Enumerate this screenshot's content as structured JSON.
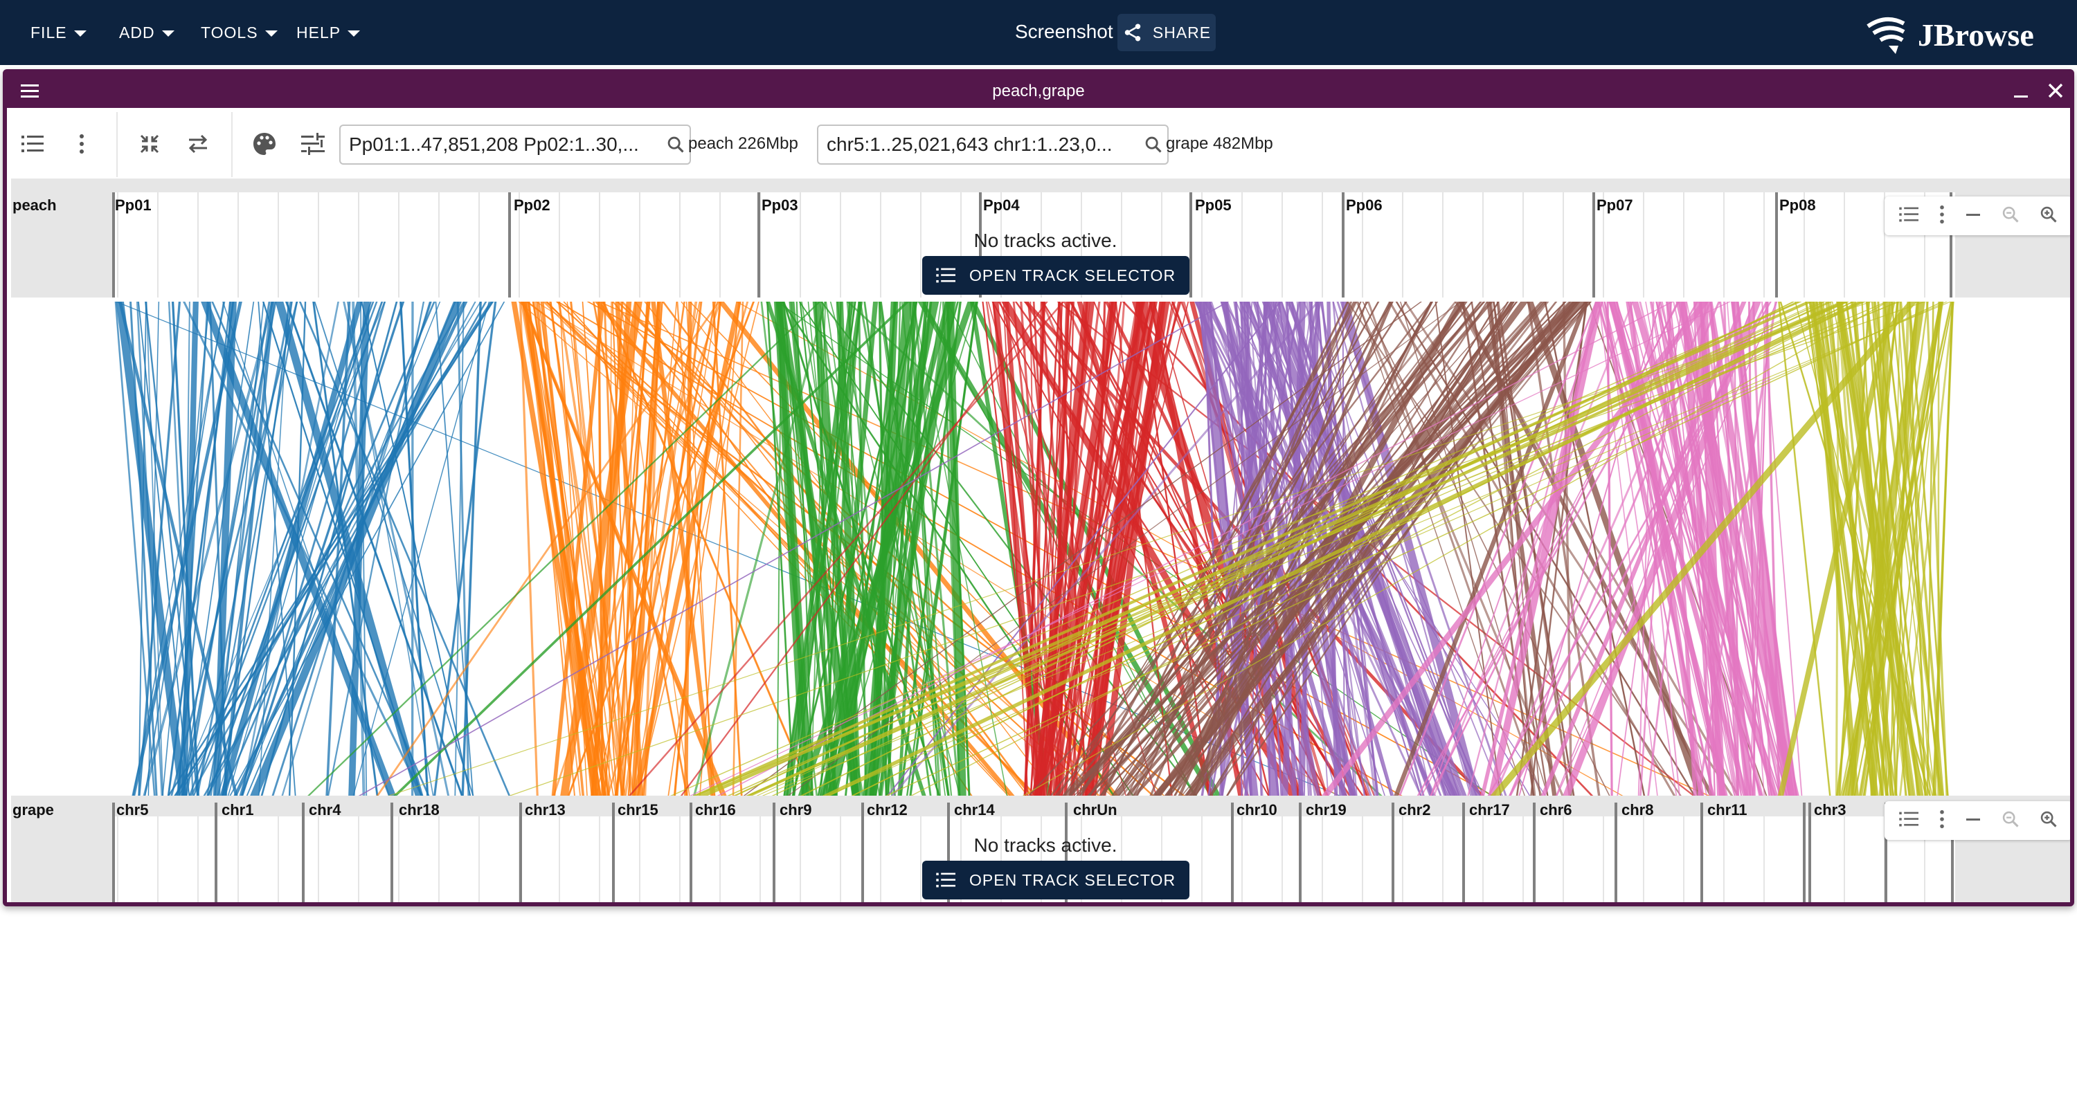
{
  "appbar": {
    "menus": [
      "FILE",
      "ADD",
      "TOOLS",
      "HELP"
    ],
    "session_name": "Screenshot",
    "share_label": "SHARE",
    "logo_text": "JBrowse"
  },
  "view": {
    "title": "peach,grape",
    "top": {
      "location": "Pp01:1..47,851,208 Pp02:1..30,...",
      "assembly_label": "peach 226Mbp",
      "assembly_name": "peach",
      "no_tracks": "No tracks active.",
      "open_track_selector": "OPEN TRACK SELECTOR",
      "refs": [
        "Pp01",
        "Pp02",
        "Pp03",
        "Pp04",
        "Pp05",
        "Pp06",
        "Pp07",
        "Pp08"
      ]
    },
    "bottom": {
      "location": "chr5:1..25,021,643 chr1:1..23,0...",
      "assembly_label": "grape 482Mbp",
      "assembly_name": "grape",
      "no_tracks": "No tracks active.",
      "open_track_selector": "OPEN TRACK SELECTOR",
      "refs": [
        "chr5",
        "chr1",
        "chr4",
        "chr18",
        "chr13",
        "chr15",
        "chr16",
        "chr9",
        "chr12",
        "chr14",
        "chrUn",
        "chr10",
        "chr19",
        "chr2",
        "chr17",
        "chr6",
        "chr8",
        "chr11",
        "chr3"
      ]
    }
  },
  "colors": {
    "appbar": "#0d233f",
    "view_border": "#54174b",
    "synteny": [
      "#1f77b4",
      "#ff7f0e",
      "#2ca02c",
      "#d62728",
      "#9467bd",
      "#8c564b",
      "#e377c2",
      "#bcbd22"
    ]
  },
  "icons": [
    "hamburger-icon",
    "minimize-icon",
    "close-icon",
    "track-list-icon",
    "more-vert-icon",
    "collapse-icon",
    "swap-icon",
    "palette-icon",
    "tune-icon",
    "search-icon",
    "share-icon",
    "zoom-out-icon",
    "zoom-in-icon"
  ]
}
